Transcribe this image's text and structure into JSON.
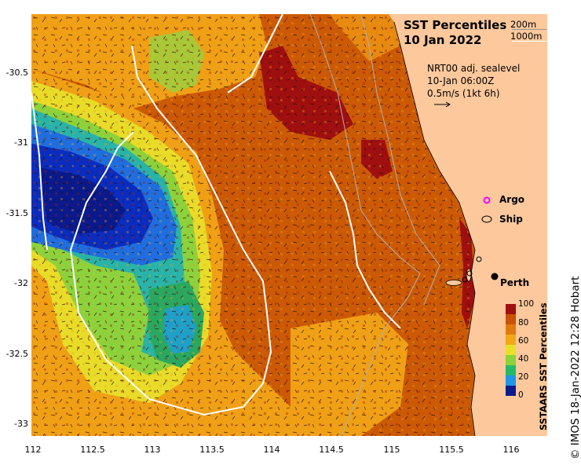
{
  "title": {
    "line1": "SST Percentiles",
    "line2": "10 Jan 2022"
  },
  "depth_legend": {
    "shallow": "200m",
    "deep": "1000m"
  },
  "velocity_legend": {
    "line1": "NRT00 adj. sealevel",
    "line2": "10-Jan 06:00Z",
    "line3": "0.5m/s (1kt 6h)"
  },
  "markers": {
    "argo": "Argo",
    "ship": "Ship",
    "argo_color": "#ff00ff"
  },
  "city": {
    "name": "Perth",
    "lon": 115.86,
    "lat": -31.95
  },
  "axes": {
    "x_ticks": [
      "112",
      "112.5",
      "113",
      "113.5",
      "114",
      "114.5",
      "115",
      "115.5",
      "116"
    ],
    "y_ticks": [
      "-30.5",
      "-31",
      "-31.5",
      "-32",
      "-32.5",
      "-33"
    ],
    "x_range": [
      112,
      116.3
    ],
    "y_range": [
      -33.05,
      -30.05
    ]
  },
  "colorbar": {
    "title": "SSTAARS SST Percentiles",
    "ticks": [
      "100",
      "80",
      "60",
      "40",
      "20",
      "0"
    ],
    "colors": [
      "#0a1a8c",
      "#1550d8",
      "#1f96e6",
      "#28b86a",
      "#8cd23c",
      "#e8e028",
      "#f2a818",
      "#e07810",
      "#c85206"
    ]
  },
  "colors": {
    "land": "#fcc89c",
    "field": "#cc5a05",
    "hot": "#a00f0f",
    "cool": "#0a2dc0"
  },
  "credit": "© IMOS 18-Jan-2022 12:28 Hobart"
}
